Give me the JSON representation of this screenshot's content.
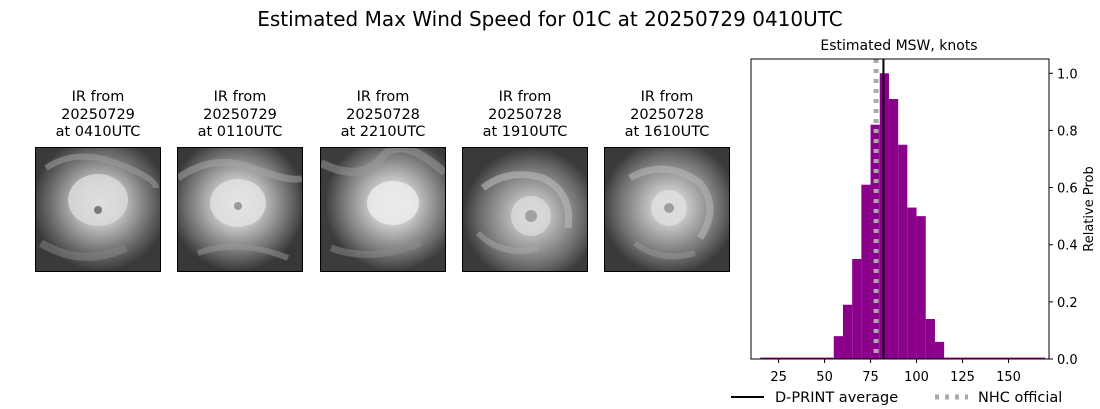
{
  "figure": {
    "title": "Estimated Max Wind Speed for 01C at 20250729 0410UTC"
  },
  "ir_images": [
    {
      "line1": "IR from",
      "line2": "20250729",
      "line3": "at 0410UTC"
    },
    {
      "line1": "IR from",
      "line2": "20250729",
      "line3": "at 0110UTC"
    },
    {
      "line1": "IR from",
      "line2": "20250728",
      "line3": "at 2210UTC"
    },
    {
      "line1": "IR from",
      "line2": "20250728",
      "line3": "at 1910UTC"
    },
    {
      "line1": "IR from",
      "line2": "20250728",
      "line3": "at 1610UTC"
    }
  ],
  "chart_data": {
    "type": "bar",
    "title": "Estimated MSW, knots",
    "ylabel": "Relative Prob",
    "xlabel": "",
    "xlim": [
      10,
      172
    ],
    "ylim": [
      0,
      1.05
    ],
    "x_ticks": [
      25,
      50,
      75,
      100,
      125,
      150
    ],
    "y_ticks": [
      0.0,
      0.2,
      0.4,
      0.6,
      0.8,
      1.0
    ],
    "y_tick_labels": [
      "0.0",
      "0.2",
      "0.4",
      "0.6",
      "0.8",
      "1.0"
    ],
    "y_axis_side": "right",
    "bar_color": "#8b008b",
    "bin_width": 5,
    "bins": [
      {
        "x0": 15,
        "x1": 20,
        "value": 0.005
      },
      {
        "x0": 20,
        "x1": 25,
        "value": 0.005
      },
      {
        "x0": 25,
        "x1": 30,
        "value": 0.005
      },
      {
        "x0": 30,
        "x1": 35,
        "value": 0.005
      },
      {
        "x0": 35,
        "x1": 40,
        "value": 0.005
      },
      {
        "x0": 40,
        "x1": 45,
        "value": 0.005
      },
      {
        "x0": 45,
        "x1": 50,
        "value": 0.005
      },
      {
        "x0": 50,
        "x1": 55,
        "value": 0.005
      },
      {
        "x0": 55,
        "x1": 60,
        "value": 0.08
      },
      {
        "x0": 60,
        "x1": 65,
        "value": 0.19
      },
      {
        "x0": 65,
        "x1": 70,
        "value": 0.35
      },
      {
        "x0": 70,
        "x1": 75,
        "value": 0.61
      },
      {
        "x0": 75,
        "x1": 80,
        "value": 0.82
      },
      {
        "x0": 80,
        "x1": 85,
        "value": 1.0
      },
      {
        "x0": 85,
        "x1": 90,
        "value": 0.91
      },
      {
        "x0": 90,
        "x1": 95,
        "value": 0.75
      },
      {
        "x0": 95,
        "x1": 100,
        "value": 0.53
      },
      {
        "x0": 100,
        "x1": 105,
        "value": 0.5
      },
      {
        "x0": 105,
        "x1": 110,
        "value": 0.14
      },
      {
        "x0": 110,
        "x1": 115,
        "value": 0.06
      },
      {
        "x0": 115,
        "x1": 120,
        "value": 0.005
      },
      {
        "x0": 120,
        "x1": 125,
        "value": 0.005
      },
      {
        "x0": 125,
        "x1": 130,
        "value": 0.005
      },
      {
        "x0": 130,
        "x1": 135,
        "value": 0.005
      },
      {
        "x0": 135,
        "x1": 140,
        "value": 0.005
      },
      {
        "x0": 140,
        "x1": 145,
        "value": 0.005
      },
      {
        "x0": 145,
        "x1": 150,
        "value": 0.005
      },
      {
        "x0": 150,
        "x1": 155,
        "value": 0.005
      },
      {
        "x0": 155,
        "x1": 160,
        "value": 0.005
      },
      {
        "x0": 160,
        "x1": 165,
        "value": 0.005
      },
      {
        "x0": 165,
        "x1": 170,
        "value": 0.005
      }
    ],
    "reference_lines": [
      {
        "name": "D-PRINT average",
        "x": 82,
        "color": "#000000",
        "style": "solid"
      },
      {
        "name": "NHC official",
        "x": 78,
        "color": "#aaaaaa",
        "style": "dotted"
      }
    ],
    "legend_position": "bottom"
  }
}
